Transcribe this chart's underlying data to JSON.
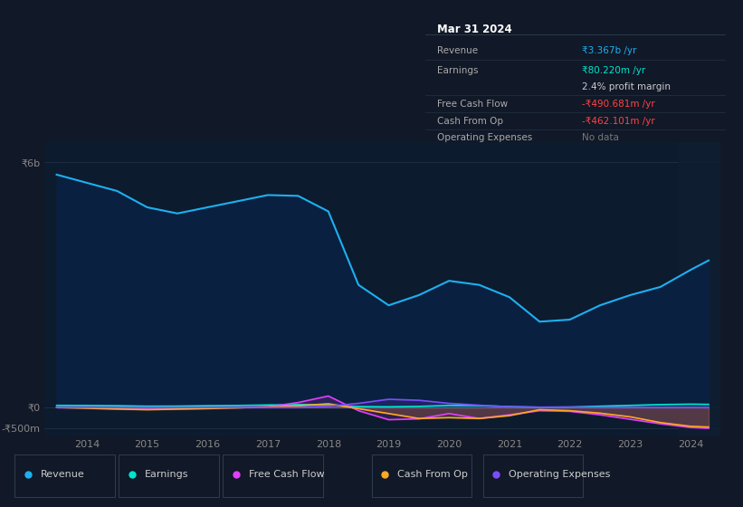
{
  "background_color": "#111827",
  "plot_bg_color": "#0d1b2e",
  "years": [
    2013.5,
    2014.0,
    2014.5,
    2015.0,
    2015.5,
    2016.0,
    2016.5,
    2017.0,
    2017.5,
    2018.0,
    2018.5,
    2019.0,
    2019.5,
    2020.0,
    2020.5,
    2021.0,
    2021.5,
    2022.0,
    2022.5,
    2023.0,
    2023.5,
    2024.0,
    2024.3
  ],
  "revenue_m": [
    5700,
    5500,
    5300,
    4900,
    4750,
    4900,
    5050,
    5200,
    5180,
    4800,
    3000,
    2500,
    2750,
    3100,
    3000,
    2700,
    2100,
    2150,
    2500,
    2750,
    2950,
    3367,
    3600
  ],
  "earnings_m": [
    50,
    48,
    42,
    30,
    32,
    42,
    48,
    60,
    70,
    65,
    20,
    15,
    25,
    50,
    45,
    20,
    5,
    10,
    30,
    50,
    70,
    80.22,
    75
  ],
  "fcf_m": [
    0,
    0,
    -10,
    -20,
    -15,
    -8,
    5,
    15,
    120,
    280,
    -80,
    -300,
    -280,
    -150,
    -270,
    -180,
    -80,
    -95,
    -180,
    -290,
    -400,
    -490.681,
    -510
  ],
  "cfo_m": [
    0,
    -20,
    -40,
    -55,
    -42,
    -28,
    -10,
    15,
    40,
    90,
    -30,
    -150,
    -270,
    -250,
    -270,
    -200,
    -55,
    -80,
    -140,
    -230,
    -370,
    -462.101,
    -480
  ],
  "opex_m": [
    0,
    0,
    0,
    0,
    0,
    0,
    0,
    0,
    0,
    30,
    100,
    200,
    175,
    100,
    55,
    15,
    5,
    5,
    0,
    0,
    0,
    0,
    0
  ],
  "revenue_color": "#1db0f0",
  "earnings_color": "#00e5cc",
  "fcf_color": "#e040fb",
  "cfo_color": "#ffa726",
  "opex_color": "#7c4dff",
  "fill_revenue_color": "#0a2040",
  "legend_labels": [
    "Revenue",
    "Earnings",
    "Free Cash Flow",
    "Cash From Op",
    "Operating Expenses"
  ],
  "legend_colors": [
    "#1db0f0",
    "#00e5cc",
    "#e040fb",
    "#ffa726",
    "#7c4dff"
  ],
  "ylim_m": [
    -700,
    6500
  ],
  "xlim": [
    2013.3,
    2024.5
  ],
  "yticks_m": [
    6000,
    0,
    -500
  ],
  "ytick_labels": [
    "₹6b",
    "₹0",
    "-₹500m"
  ],
  "xtick_positions": [
    2014,
    2015,
    2016,
    2017,
    2018,
    2019,
    2020,
    2021,
    2022,
    2023,
    2024
  ],
  "xtick_labels": [
    "2014",
    "2015",
    "2016",
    "2017",
    "2018",
    "2019",
    "2020",
    "2021",
    "2022",
    "2023",
    "2024"
  ],
  "info_box_bg": "#141e2e",
  "info_box_border": "#2a3a4a",
  "info_title": "Mar 31 2024",
  "info_rows": [
    {
      "label": "Revenue",
      "value": "₹3.367b /yr",
      "label_color": "#aaaaaa",
      "value_color": "#1db0f0"
    },
    {
      "label": "Earnings",
      "value": "₹80.220m /yr",
      "label_color": "#aaaaaa",
      "value_color": "#00e5cc"
    },
    {
      "label": "",
      "value": "2.4% profit margin",
      "label_color": "#aaaaaa",
      "value_color": "#cccccc"
    },
    {
      "label": "Free Cash Flow",
      "value": "-₹490.681m /yr",
      "label_color": "#aaaaaa",
      "value_color": "#ff4444"
    },
    {
      "label": "Cash From Op",
      "value": "-₹462.101m /yr",
      "label_color": "#aaaaaa",
      "value_color": "#ff4444"
    },
    {
      "label": "Operating Expenses",
      "value": "No data",
      "label_color": "#aaaaaa",
      "value_color": "#777777"
    }
  ],
  "grid_color": "#1e2d40",
  "tick_color": "#888888",
  "border_color": "#2a3a4a"
}
